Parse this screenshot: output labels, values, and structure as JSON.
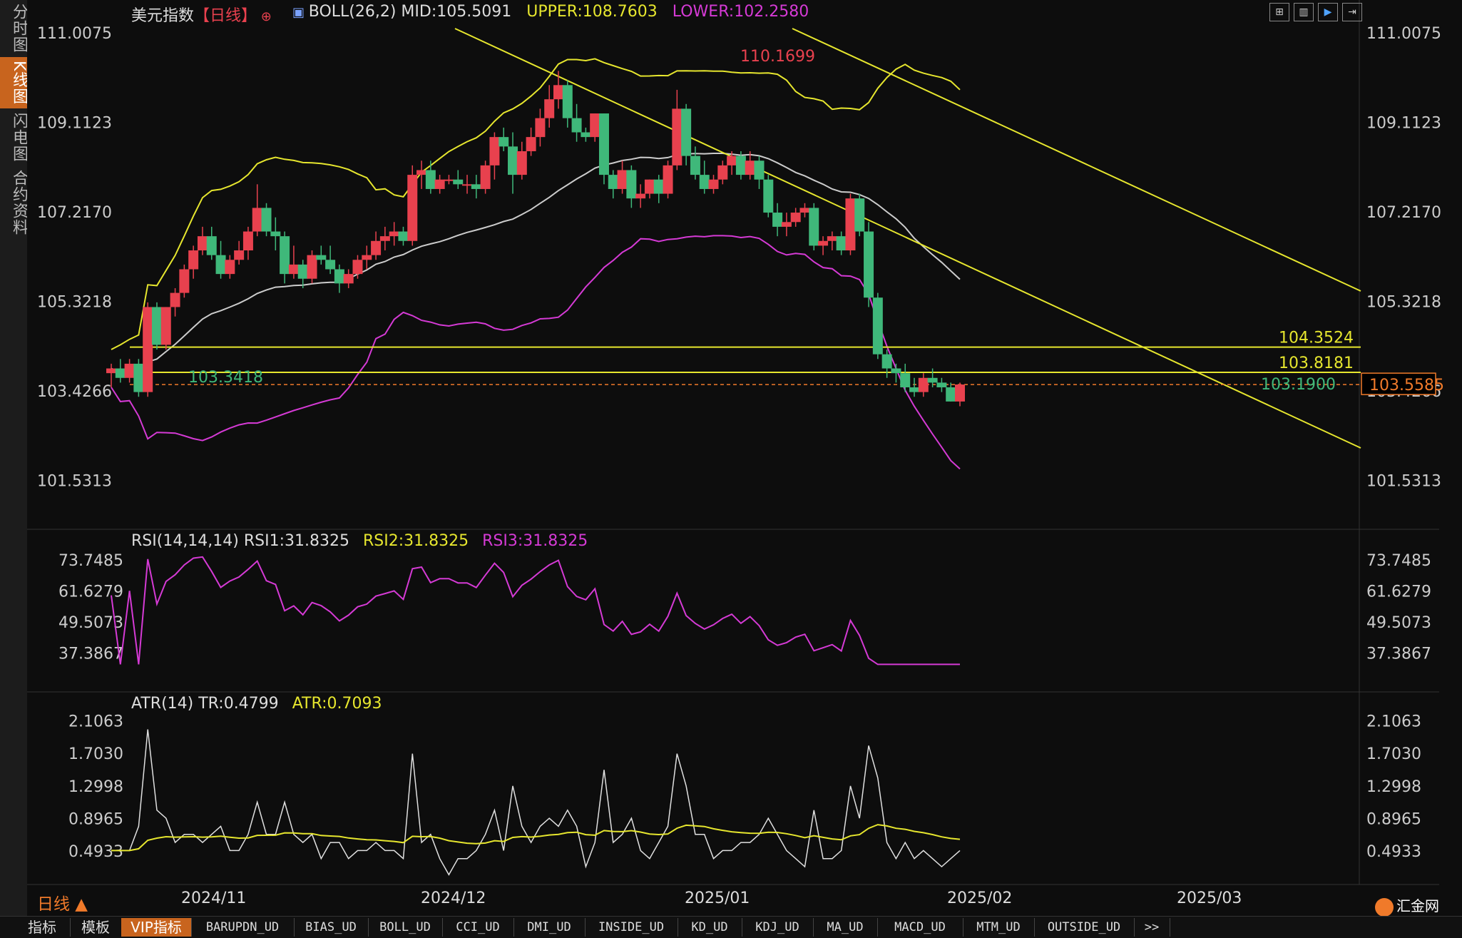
{
  "left_tabs": [
    "分时图",
    "K线图",
    "闪电图",
    "合约资料"
  ],
  "header": {
    "title": "美元指数",
    "period": "【日线】",
    "boll_label": "BOLL(26,2)",
    "mid": "MID:105.5091",
    "upper": "UPPER:108.7603",
    "lower": "LOWER:102.2580"
  },
  "rsi_header": {
    "label": "RSI(14,14,14)",
    "rsi1": "RSI1:31.8325",
    "rsi2": "RSI2:31.8325",
    "rsi3": "RSI3:31.8325"
  },
  "atr_header": {
    "label": "ATR(14)",
    "tr": "TR:0.4799",
    "atr": "ATR:0.7093"
  },
  "price_axis": [
    "111.0075",
    "109.1123",
    "107.2170",
    "105.3218",
    "103.4266",
    "101.5313"
  ],
  "rsi_axis": [
    "73.7485",
    "61.6279",
    "49.5073",
    "37.3867"
  ],
  "atr_axis": [
    "2.1063",
    "1.7030",
    "1.2998",
    "0.8965",
    "0.4933"
  ],
  "date_labels": [
    "2024/11",
    "2024/12",
    "2025/01",
    "2025/02",
    "2025/03"
  ],
  "annotations": {
    "high": "110.1699",
    "low_left": "103.3418",
    "low_right": "103.1900",
    "level1": "104.3524",
    "level2": "103.8181",
    "current": "103.5585"
  },
  "period_label": "日线 ▲",
  "bottom_tabs": [
    "指标",
    "模板",
    "VIP指标",
    "BARUPDN_UD",
    "BIAS_UD",
    "BOLL_UD",
    "CCI_UD",
    "DMI_UD",
    "INSIDE_UD",
    "KD_UD",
    "KDJ_UD",
    "MA_UD",
    "MACD_UD",
    "MTM_UD",
    "OUTSIDE_UD",
    ">>"
  ],
  "logo_text": "汇金网",
  "colors": {
    "up": "#e8414e",
    "down": "#3fb87a",
    "mid": "#cccccc",
    "upper": "#e6e62e",
    "lower": "#d53ad5",
    "accent": "#c8641e"
  },
  "chart_data": {
    "type": "candlestick",
    "title": "美元指数",
    "ylim": [
      100.6,
      111.4
    ],
    "candles": [
      [
        103.8,
        104.0,
        103.5,
        103.9
      ],
      [
        103.9,
        104.1,
        103.6,
        103.7
      ],
      [
        103.7,
        104.1,
        103.6,
        104.0
      ],
      [
        104.0,
        104.1,
        103.3,
        103.4
      ],
      [
        103.4,
        105.3,
        103.3,
        105.2
      ],
      [
        105.2,
        105.3,
        104.3,
        104.4
      ],
      [
        104.4,
        105.2,
        104.3,
        105.2
      ],
      [
        105.2,
        105.6,
        105.0,
        105.5
      ],
      [
        105.5,
        106.1,
        105.4,
        106.0
      ],
      [
        106.0,
        106.5,
        105.8,
        106.4
      ],
      [
        106.4,
        106.9,
        106.3,
        106.7
      ],
      [
        106.7,
        106.9,
        106.2,
        106.3
      ],
      [
        106.3,
        106.6,
        105.8,
        105.9
      ],
      [
        105.9,
        106.3,
        105.8,
        106.2
      ],
      [
        106.2,
        106.6,
        106.1,
        106.4
      ],
      [
        106.4,
        106.9,
        106.2,
        106.8
      ],
      [
        106.8,
        107.8,
        106.7,
        107.3
      ],
      [
        107.3,
        107.4,
        106.7,
        106.8
      ],
      [
        106.8,
        107.1,
        106.4,
        106.7
      ],
      [
        106.7,
        106.8,
        105.7,
        105.9
      ],
      [
        105.9,
        106.5,
        105.8,
        106.1
      ],
      [
        106.1,
        106.2,
        105.6,
        105.8
      ],
      [
        105.8,
        106.4,
        105.7,
        106.3
      ],
      [
        106.3,
        106.5,
        106.1,
        106.2
      ],
      [
        106.2,
        106.5,
        105.9,
        106.0
      ],
      [
        106.0,
        106.1,
        105.5,
        105.7
      ],
      [
        105.7,
        106.0,
        105.6,
        105.9
      ],
      [
        105.9,
        106.3,
        105.8,
        106.2
      ],
      [
        106.2,
        106.5,
        106.0,
        106.3
      ],
      [
        106.3,
        106.8,
        106.2,
        106.6
      ],
      [
        106.6,
        106.9,
        106.4,
        106.7
      ],
      [
        106.7,
        107.0,
        106.5,
        106.8
      ],
      [
        106.8,
        106.9,
        106.5,
        106.6
      ],
      [
        106.6,
        108.2,
        106.5,
        108.0
      ],
      [
        108.0,
        108.3,
        107.7,
        108.1
      ],
      [
        108.1,
        108.3,
        107.6,
        107.7
      ],
      [
        107.7,
        108.0,
        107.6,
        107.9
      ],
      [
        107.9,
        108.0,
        107.8,
        107.9
      ],
      [
        107.9,
        108.1,
        107.7,
        107.8
      ],
      [
        107.8,
        108.0,
        107.6,
        107.8
      ],
      [
        107.8,
        108.0,
        107.5,
        107.7
      ],
      [
        107.7,
        108.3,
        107.6,
        108.2
      ],
      [
        108.2,
        108.9,
        107.9,
        108.8
      ],
      [
        108.8,
        109.0,
        108.5,
        108.6
      ],
      [
        108.6,
        108.9,
        107.6,
        108.0
      ],
      [
        108.0,
        108.7,
        107.9,
        108.5
      ],
      [
        108.5,
        109.0,
        108.4,
        108.8
      ],
      [
        108.8,
        109.4,
        108.6,
        109.2
      ],
      [
        109.2,
        109.9,
        109.0,
        109.6
      ],
      [
        109.6,
        110.2,
        109.4,
        109.9
      ],
      [
        109.9,
        110.0,
        109.0,
        109.2
      ],
      [
        109.2,
        109.5,
        108.7,
        108.9
      ],
      [
        108.9,
        109.0,
        108.7,
        108.8
      ],
      [
        108.8,
        109.3,
        108.7,
        109.3
      ],
      [
        109.3,
        109.3,
        107.8,
        108.0
      ],
      [
        108.0,
        108.1,
        107.5,
        107.7
      ],
      [
        107.7,
        108.3,
        107.6,
        108.1
      ],
      [
        108.1,
        108.2,
        107.3,
        107.5
      ],
      [
        107.5,
        107.8,
        107.3,
        107.6
      ],
      [
        107.6,
        107.9,
        107.5,
        107.9
      ],
      [
        107.9,
        108.0,
        107.4,
        107.6
      ],
      [
        107.6,
        108.3,
        107.5,
        108.2
      ],
      [
        108.2,
        109.8,
        108.1,
        109.4
      ],
      [
        109.4,
        109.5,
        108.2,
        108.4
      ],
      [
        108.4,
        108.6,
        107.9,
        108.0
      ],
      [
        108.0,
        108.3,
        107.6,
        107.7
      ],
      [
        107.7,
        108.0,
        107.6,
        107.9
      ],
      [
        107.9,
        108.3,
        107.8,
        108.2
      ],
      [
        108.2,
        108.5,
        108.0,
        108.4
      ],
      [
        108.4,
        108.5,
        107.9,
        108.0
      ],
      [
        108.0,
        108.5,
        107.9,
        108.3
      ],
      [
        108.3,
        108.4,
        107.7,
        107.9
      ],
      [
        107.9,
        108.0,
        107.1,
        107.2
      ],
      [
        107.2,
        107.4,
        106.7,
        106.9
      ],
      [
        106.9,
        107.2,
        106.7,
        107.0
      ],
      [
        107.0,
        107.3,
        106.9,
        107.2
      ],
      [
        107.2,
        107.4,
        107.1,
        107.3
      ],
      [
        107.3,
        107.4,
        106.4,
        106.5
      ],
      [
        106.5,
        106.7,
        106.3,
        106.6
      ],
      [
        106.6,
        106.8,
        106.4,
        106.7
      ],
      [
        106.7,
        106.8,
        106.3,
        106.4
      ],
      [
        106.4,
        107.6,
        106.3,
        107.5
      ],
      [
        107.5,
        107.6,
        106.7,
        106.8
      ],
      [
        106.8,
        107.0,
        105.2,
        105.4
      ],
      [
        105.4,
        105.5,
        104.1,
        104.2
      ],
      [
        104.2,
        104.3,
        103.7,
        103.9
      ],
      [
        103.9,
        104.0,
        103.6,
        103.8
      ],
      [
        103.8,
        104.0,
        103.4,
        103.5
      ],
      [
        103.5,
        103.7,
        103.3,
        103.4
      ],
      [
        103.4,
        103.8,
        103.3,
        103.7
      ],
      [
        103.7,
        103.9,
        103.5,
        103.6
      ],
      [
        103.6,
        103.7,
        103.4,
        103.5
      ],
      [
        103.5,
        103.6,
        103.2,
        103.2
      ],
      [
        103.2,
        103.6,
        103.1,
        103.56
      ]
    ]
  }
}
